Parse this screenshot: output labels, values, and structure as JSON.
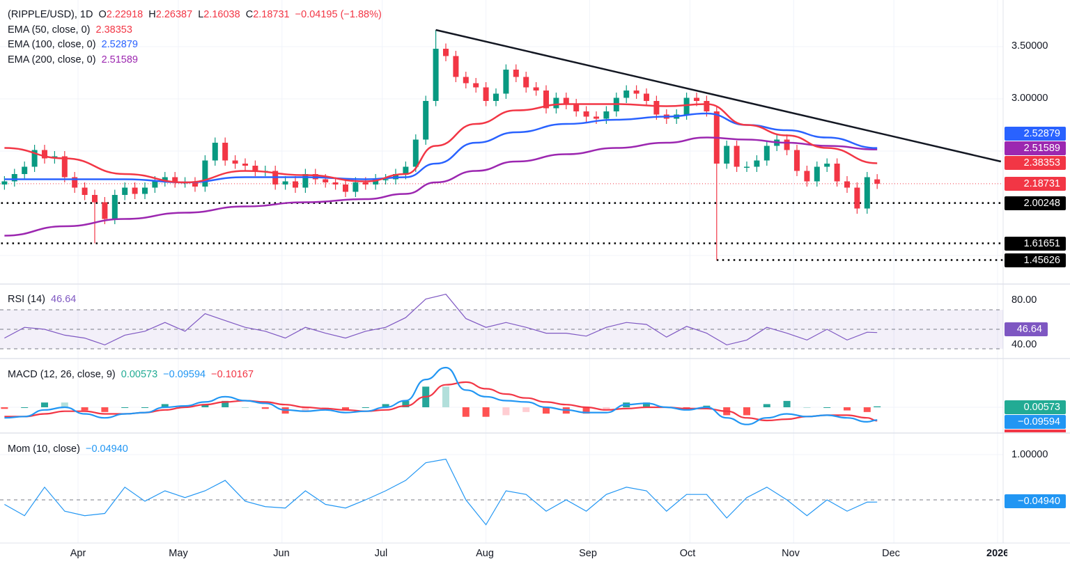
{
  "header": {
    "symbol": "(RIPPLE/USD), 1D",
    "o_label": "O",
    "open": "2.22918",
    "h_label": "H",
    "high": "2.26387",
    "l_label": "L",
    "low": "2.16038",
    "c_label": "C",
    "close": "2.18731",
    "change": "−0.04195 (−1.88%)"
  },
  "ema_legend": [
    {
      "label": "EMA (50, close, 0)",
      "value": "2.38353",
      "color": "#f23645"
    },
    {
      "label": "EMA (100, close, 0)",
      "value": "2.52879",
      "color": "#2962ff"
    },
    {
      "label": "EMA (200, close, 0)",
      "value": "2.51589",
      "color": "#9c27b0"
    }
  ],
  "rsi_legend": {
    "label": "RSI (14)",
    "value": "46.64",
    "color": "#7e57c2"
  },
  "macd_legend": {
    "label": "MACD (12, 26, close, 9)",
    "hist": "0.00573",
    "macd": "−0.09594",
    "signal": "−0.10167"
  },
  "mom_legend": {
    "label": "Mom (10, close)",
    "value": "−0.04940"
  },
  "price_axis": {
    "ticks": [
      "3.50000",
      "3.00000"
    ],
    "tags": {
      "ema100": "2.52879",
      "ema200": "2.51589",
      "ema50": "2.38353",
      "last": "2.18731",
      "level1": "2.00248",
      "level2": "1.61651",
      "level3": "1.45626"
    }
  },
  "rsi_axis": {
    "ticks": [
      "80.00",
      "40.00"
    ],
    "tag": "46.64"
  },
  "macd_axis": {
    "hist_tag": "0.00573",
    "macd_tag": "−0.09594"
  },
  "mom_axis": {
    "ticks": [
      "1.00000"
    ],
    "tag": "−0.04940"
  },
  "date_axis": [
    "Apr",
    "May",
    "Jun",
    "Jul",
    "Aug",
    "Sep",
    "Oct",
    "Nov",
    "Dec",
    "2026"
  ],
  "colors": {
    "up": "#089981",
    "down": "#f23645",
    "ema50": "#f23645",
    "ema100": "#2962ff",
    "ema200": "#9c27b0",
    "rsi": "#7e57c2",
    "macd": "#2196f3",
    "signal": "#f23645",
    "mom": "#2196f3",
    "trendline": "#131722"
  },
  "chart_data": [
    {
      "type": "candlestick",
      "title": "(RIPPLE/USD), 1D",
      "x": [
        "2025-03-10",
        "2025-03-13",
        "2025-03-16",
        "2025-03-19",
        "2025-03-22",
        "2025-03-25",
        "2025-03-28",
        "2025-03-31",
        "2025-04-03",
        "2025-04-06",
        "2025-04-09",
        "2025-04-12",
        "2025-04-15",
        "2025-04-18",
        "2025-04-21",
        "2025-04-24",
        "2025-04-27",
        "2025-04-30",
        "2025-05-03",
        "2025-05-06",
        "2025-05-09",
        "2025-05-12",
        "2025-05-15",
        "2025-05-18",
        "2025-05-21",
        "2025-05-24",
        "2025-05-27",
        "2025-05-30",
        "2025-06-02",
        "2025-06-05",
        "2025-06-08",
        "2025-06-11",
        "2025-06-14",
        "2025-06-17",
        "2025-06-20",
        "2025-06-23",
        "2025-06-26",
        "2025-06-29",
        "2025-07-02",
        "2025-07-05",
        "2025-07-08",
        "2025-07-11",
        "2025-07-14",
        "2025-07-17",
        "2025-07-20",
        "2025-07-23",
        "2025-07-26",
        "2025-07-29",
        "2025-08-01",
        "2025-08-04",
        "2025-08-07",
        "2025-08-10",
        "2025-08-13",
        "2025-08-16",
        "2025-08-19",
        "2025-08-22",
        "2025-08-25",
        "2025-08-28",
        "2025-08-31",
        "2025-09-03",
        "2025-09-06",
        "2025-09-09",
        "2025-09-12",
        "2025-09-15",
        "2025-09-18",
        "2025-09-21",
        "2025-09-24",
        "2025-09-27",
        "2025-09-30",
        "2025-10-03",
        "2025-10-06",
        "2025-10-09",
        "2025-10-12",
        "2025-10-15",
        "2025-10-18",
        "2025-10-21",
        "2025-10-24",
        "2025-10-27",
        "2025-10-30",
        "2025-11-02",
        "2025-11-05",
        "2025-11-08",
        "2025-11-11",
        "2025-11-14",
        "2025-11-17",
        "2025-11-20",
        "2025-11-23",
        "2025-11-26"
      ],
      "close": [
        2.21,
        2.28,
        2.35,
        2.51,
        2.43,
        2.45,
        2.25,
        2.15,
        2.08,
        2.01,
        1.85,
        2.08,
        2.15,
        2.09,
        2.15,
        2.21,
        2.25,
        2.2,
        2.2,
        2.16,
        2.41,
        2.58,
        2.41,
        2.38,
        2.36,
        2.31,
        2.31,
        2.18,
        2.21,
        2.15,
        2.28,
        2.23,
        2.2,
        2.18,
        2.11,
        2.2,
        2.18,
        2.23,
        2.23,
        2.28,
        2.35,
        2.61,
        2.98,
        3.48,
        3.41,
        3.21,
        3.15,
        3.11,
        2.98,
        3.05,
        3.28,
        3.21,
        3.11,
        3.08,
        2.91,
        3.01,
        2.95,
        2.88,
        2.83,
        2.81,
        2.88,
        3.01,
        3.08,
        3.05,
        2.98,
        2.85,
        2.81,
        2.85,
        3.01,
        2.98,
        2.88,
        2.38,
        2.55,
        2.35,
        2.35,
        2.41,
        2.55,
        2.61,
        2.51,
        2.31,
        2.21,
        2.35,
        2.38,
        2.21,
        2.15,
        1.95,
        2.25,
        2.18731
      ],
      "last_open": 2.22918,
      "extremes": [
        {
          "date": "2025-04-06",
          "low": 1.61651
        },
        {
          "date": "2025-07-17",
          "high": 3.66
        },
        {
          "date": "2025-10-09",
          "low": 1.45626
        }
      ],
      "ema": {
        "x": [
          "2025-03-10",
          "2025-03-28",
          "2025-04-15",
          "2025-05-03",
          "2025-05-21",
          "2025-06-08",
          "2025-06-26",
          "2025-07-08",
          "2025-07-17",
          "2025-07-29",
          "2025-08-10",
          "2025-08-25",
          "2025-09-09",
          "2025-09-24",
          "2025-10-06",
          "2025-10-18",
          "2025-10-30",
          "2025-11-11",
          "2025-11-26"
        ],
        "series": [
          {
            "name": "EMA (50, close, 0)",
            "values": [
              2.53,
              2.43,
              2.28,
              2.2,
              2.31,
              2.27,
              2.21,
              2.28,
              2.55,
              2.76,
              2.89,
              2.95,
              2.95,
              2.93,
              2.95,
              2.75,
              2.65,
              2.53,
              2.38353
            ]
          },
          {
            "name": "EMA (100, close, 0)",
            "values": [
              2.23,
              2.23,
              2.23,
              2.2,
              2.25,
              2.25,
              2.23,
              2.25,
              2.38,
              2.58,
              2.68,
              2.76,
              2.8,
              2.83,
              2.86,
              2.75,
              2.7,
              2.63,
              2.52879
            ]
          },
          {
            "name": "EMA (200, close, 0)",
            "values": [
              1.69,
              1.78,
              1.85,
              1.91,
              1.97,
              2.01,
              2.04,
              2.09,
              2.2,
              2.31,
              2.4,
              2.47,
              2.53,
              2.58,
              2.63,
              2.61,
              2.58,
              2.55,
              2.51589
            ]
          }
        ]
      },
      "levels": [
        {
          "value": 2.00248,
          "from": "2025-03-09"
        },
        {
          "value": 1.61651,
          "from": "2025-03-09"
        },
        {
          "value": 1.45626,
          "from": "2025-10-09"
        }
      ],
      "trendline": {
        "from": {
          "date": "2025-07-17",
          "value": 3.66
        },
        "to": {
          "date": "2026-01-02",
          "value": 2.4
        }
      },
      "yticks": [
        3.5,
        3.0
      ],
      "xticks": [
        "Apr",
        "May",
        "Jun",
        "Jul",
        "Aug",
        "Sep",
        "Oct",
        "Nov",
        "Dec",
        "2026"
      ]
    },
    {
      "type": "line",
      "title": "RSI (14)",
      "x": [
        "2025-03-10",
        "2025-03-16",
        "2025-03-22",
        "2025-03-28",
        "2025-04-03",
        "2025-04-09",
        "2025-04-15",
        "2025-04-21",
        "2025-04-27",
        "2025-05-03",
        "2025-05-09",
        "2025-05-15",
        "2025-05-21",
        "2025-05-27",
        "2025-06-02",
        "2025-06-08",
        "2025-06-14",
        "2025-06-20",
        "2025-06-26",
        "2025-07-02",
        "2025-07-08",
        "2025-07-14",
        "2025-07-20",
        "2025-07-26",
        "2025-08-01",
        "2025-08-07",
        "2025-08-13",
        "2025-08-19",
        "2025-08-25",
        "2025-08-31",
        "2025-09-06",
        "2025-09-12",
        "2025-09-18",
        "2025-09-24",
        "2025-09-30",
        "2025-10-06",
        "2025-10-12",
        "2025-10-18",
        "2025-10-24",
        "2025-10-30",
        "2025-11-05",
        "2025-11-11",
        "2025-11-17",
        "2025-11-23",
        "2025-11-26"
      ],
      "values": [
        41,
        52,
        50,
        44,
        41,
        34,
        44,
        48,
        57,
        48,
        66,
        59,
        52,
        48,
        41,
        52,
        46,
        41,
        48,
        52,
        62,
        81,
        86,
        61,
        52,
        57,
        52,
        46,
        46,
        43,
        52,
        57,
        55,
        42,
        53,
        46,
        34,
        39,
        52,
        46,
        39,
        50,
        39,
        47,
        46.64
      ],
      "bands": [
        70,
        50,
        30
      ],
      "yticks": [
        80,
        40
      ]
    },
    {
      "type": "line",
      "title": "MACD (12, 26, close, 9)",
      "series": [
        {
          "name": "MACD",
          "values": [
            -0.08,
            -0.07,
            -0.02,
            0,
            -0.05,
            -0.08,
            -0.05,
            -0.04,
            0,
            0.01,
            0.04,
            0.08,
            0.05,
            0.03,
            -0.02,
            -0.03,
            -0.02,
            -0.04,
            -0.03,
            0,
            0.05,
            0.21,
            0.3,
            0.13,
            0.08,
            0.05,
            0.04,
            0,
            -0.02,
            -0.04,
            -0.04,
            0.02,
            0.03,
            0,
            -0.02,
            0,
            -0.08,
            -0.13,
            -0.08,
            -0.05,
            -0.07,
            -0.06,
            -0.08,
            -0.11,
            -0.09594
          ]
        },
        {
          "name": "Signal",
          "values": [
            -0.07,
            -0.07,
            -0.05,
            -0.03,
            -0.03,
            -0.05,
            -0.05,
            -0.04,
            -0.02,
            0,
            0.02,
            0.04,
            0.05,
            0.04,
            0.02,
            0,
            -0.01,
            -0.02,
            -0.03,
            -0.02,
            0.01,
            0.08,
            0.17,
            0.19,
            0.14,
            0.1,
            0.07,
            0.04,
            0.02,
            0,
            -0.02,
            -0.01,
            0,
            0,
            -0.01,
            -0.01,
            -0.03,
            -0.08,
            -0.1,
            -0.09,
            -0.07,
            -0.06,
            -0.06,
            -0.08,
            -0.10167
          ]
        }
      ]
    },
    {
      "type": "line",
      "title": "Mom (10, close)",
      "values": [
        -0.1,
        -0.35,
        0.28,
        -0.25,
        -0.35,
        -0.3,
        0.28,
        -0.03,
        0.2,
        0.05,
        0.2,
        0.43,
        -0.03,
        -0.15,
        -0.18,
        0.2,
        -0.1,
        -0.18,
        0,
        0.2,
        0.43,
        0.82,
        0.9,
        0,
        -0.55,
        0.2,
        0.12,
        -0.25,
        0,
        -0.25,
        0.12,
        0.28,
        0.2,
        -0.25,
        0.12,
        0.12,
        -0.4,
        0.05,
        0.28,
        0,
        -0.35,
        0,
        -0.25,
        -0.05,
        -0.0494
      ],
      "yticks": [
        1.0
      ]
    }
  ]
}
